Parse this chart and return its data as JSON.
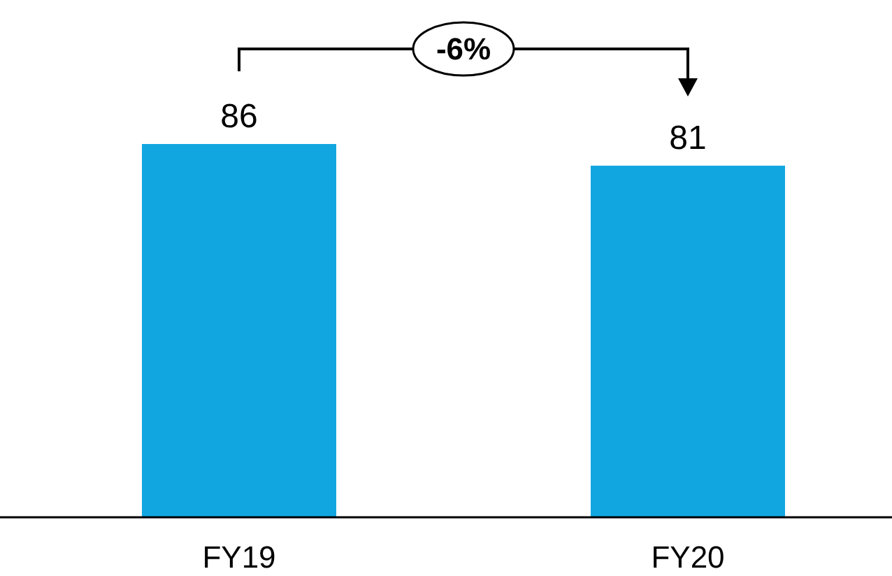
{
  "chart_data": {
    "type": "bar",
    "categories": [
      "FY19",
      "FY20"
    ],
    "values": [
      86,
      81
    ],
    "color": "#12a6e0",
    "data_labels": true,
    "annotations": [
      "-6%"
    ]
  }
}
